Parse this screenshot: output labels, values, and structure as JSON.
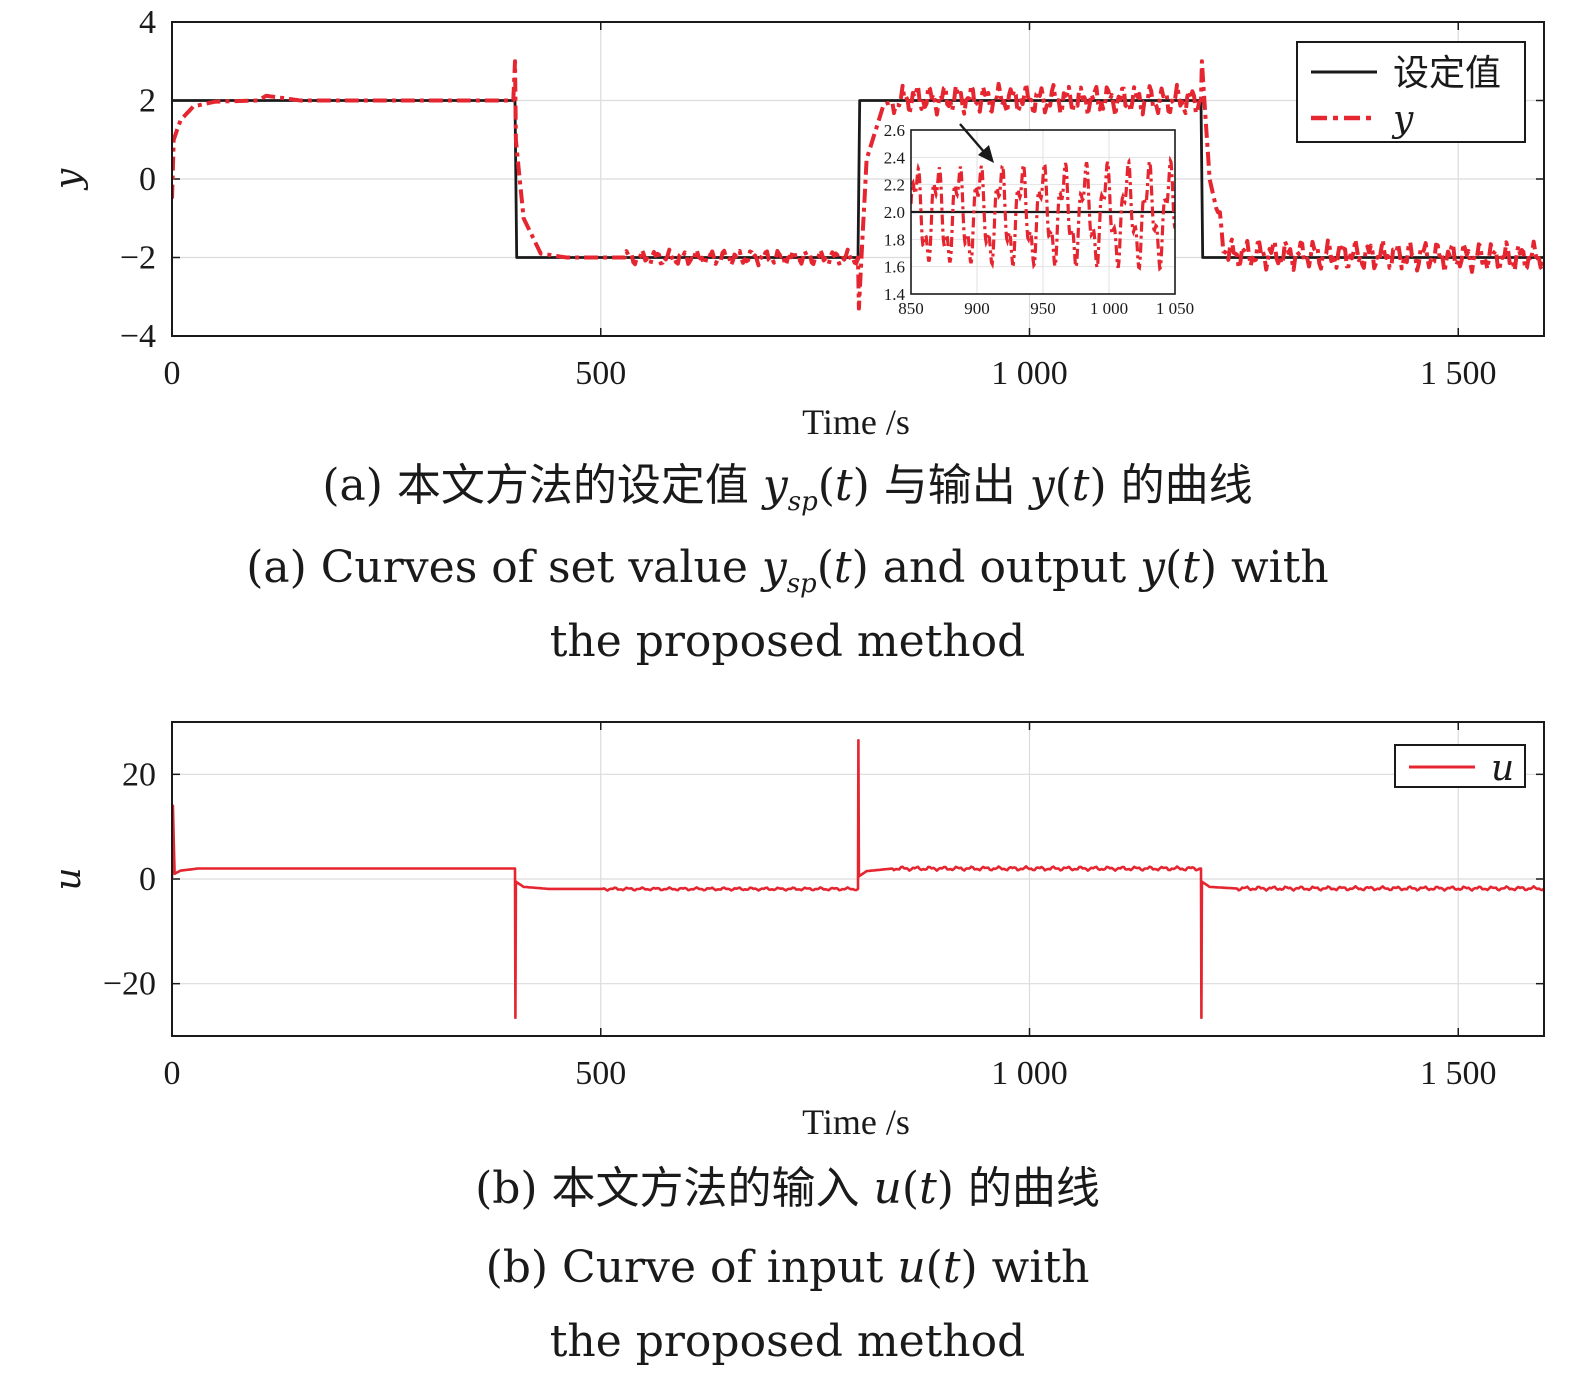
{
  "chart_data": [
    {
      "type": "line",
      "panel": "a",
      "xlabel": "Time /s",
      "ylabel": "y",
      "xlim": [
        0,
        1600
      ],
      "ylim": [
        -4,
        4
      ],
      "xticks": [
        0,
        500,
        1000,
        1500
      ],
      "xtick_labels": [
        "0",
        "500",
        "1 000",
        "1 500"
      ],
      "yticks": [
        4,
        2,
        0,
        -2,
        -4
      ],
      "ytick_labels": [
        "4",
        "2",
        "0",
        "−2",
        "−4"
      ],
      "grid": true,
      "legend_position": "top-right",
      "series": [
        {
          "name": "设定值",
          "color": "#1a1a1a",
          "style": "solid",
          "x": [
            0,
            400,
            400,
            800,
            800,
            1200,
            1200,
            1600
          ],
          "y": [
            2,
            2,
            -2,
            -2,
            2,
            2,
            -2,
            -2
          ]
        },
        {
          "name": "y",
          "color": "#e5252f",
          "style": "dash-dot",
          "x": [
            0,
            2,
            10,
            25,
            50,
            100,
            110,
            150,
            398,
            400,
            401,
            410,
            430,
            460,
            500,
            800,
            801,
            810,
            830,
            850,
            1200,
            1201,
            1210,
            1230,
            1600
          ],
          "y": [
            -0.5,
            1.0,
            1.5,
            1.85,
            1.97,
            2.0,
            2.12,
            2.0,
            2.0,
            3.0,
            1.0,
            -1.0,
            -1.9,
            -2.0,
            -2.0,
            -2.0,
            -3.3,
            0.5,
            1.9,
            2.05,
            2.0,
            3.0,
            0.0,
            -1.9,
            -2.0
          ],
          "oscillation": [
            {
              "x_range": [
                530,
                800
              ],
              "center": -2.0,
              "amplitude": 0.2
            },
            {
              "x_range": [
                840,
                1200
              ],
              "center": 2.0,
              "amplitude": 0.4
            },
            {
              "x_range": [
                1220,
                1600
              ],
              "center": -2.0,
              "amplitude": 0.4
            }
          ]
        }
      ],
      "inset": {
        "xlim": [
          850,
          1050
        ],
        "ylim": [
          1.4,
          2.6
        ],
        "xticks": [
          850,
          900,
          950,
          1000,
          1050
        ],
        "xtick_labels": [
          "850",
          "900",
          "950",
          "1 000",
          "1 050"
        ],
        "yticks": [
          2.6,
          2.4,
          2.2,
          2.0,
          1.8,
          1.6,
          1.4
        ],
        "ytick_labels": [
          "2.6",
          "2.4",
          "2.2",
          "2.0",
          "1.8",
          "1.6",
          "1.4"
        ],
        "setpoint": 2.0,
        "y_range": [
          1.57,
          2.39
        ],
        "oscillation_period": 16,
        "annotation": "arrow"
      }
    },
    {
      "type": "line",
      "panel": "b",
      "xlabel": "Time /s",
      "ylabel": "u",
      "xlim": [
        0,
        1600
      ],
      "ylim": [
        -30,
        30
      ],
      "xticks": [
        0,
        500,
        1000,
        1500
      ],
      "xtick_labels": [
        "0",
        "500",
        "1 000",
        "1 500"
      ],
      "yticks": [
        20,
        0,
        -20
      ],
      "ytick_labels": [
        "20",
        "0",
        "−20"
      ],
      "grid": true,
      "legend_position": "top-right",
      "series": [
        {
          "name": "u",
          "color": "#e5252f",
          "style": "solid",
          "x": [
            0,
            1,
            3,
            10,
            30,
            100,
            400,
            400.5,
            401,
            410,
            440,
            500,
            800,
            800.5,
            801,
            810,
            840,
            1200,
            1200.5,
            1201,
            1210,
            1240,
            1600
          ],
          "y": [
            0,
            14,
            1.0,
            1.6,
            2.0,
            2.0,
            2.0,
            -26.5,
            -0.5,
            -1.5,
            -1.9,
            -1.9,
            -1.9,
            26.5,
            0.5,
            1.5,
            2.0,
            2.0,
            -26.5,
            -0.5,
            -1.5,
            -1.8,
            -1.8
          ],
          "oscillation": [
            {
              "x_range": [
                500,
                800
              ],
              "center": -1.9,
              "amplitude": 0.3
            },
            {
              "x_range": [
                840,
                1200
              ],
              "center": 2.0,
              "amplitude": 0.4
            },
            {
              "x_range": [
                1240,
                1600
              ],
              "center": -1.8,
              "amplitude": 0.4
            }
          ]
        }
      ]
    }
  ],
  "captions": {
    "a_cn_pre": "(a) 本文方法的设定值 ",
    "a_cn_mid": " 与输出 ",
    "a_cn_post": " 的曲线",
    "a_en_pre": "(a) Curves of set value ",
    "a_en_mid": " and output ",
    "a_en_post": " with",
    "a_en_line2": "the proposed method",
    "b_cn_pre": "(b) 本文方法的输入 ",
    "b_cn_post": " 的曲线",
    "b_en_pre": "(b) Curve of input ",
    "b_en_post": " with",
    "b_en_line2": "the proposed method"
  }
}
